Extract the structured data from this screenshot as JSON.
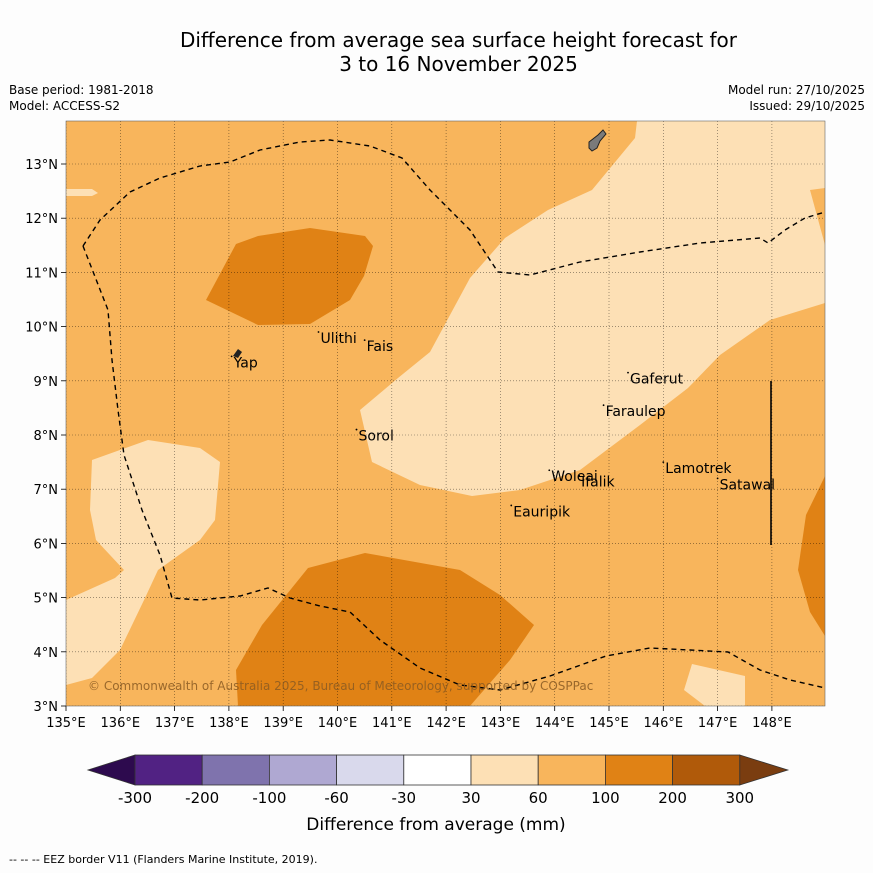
{
  "title": {
    "line1": "Difference from average sea surface height forecast for",
    "line2": "3 to 16 November 2025"
  },
  "meta": {
    "base_period": "Base period: 1981-2018",
    "model": "Model: ACCESS-S2",
    "model_run": "Model run: 27/10/2025",
    "issued": "Issued: 29/10/2025"
  },
  "map": {
    "lon_range": [
      135,
      149
    ],
    "lat_range": [
      3,
      13.8
    ],
    "lon_ticks": [
      "135°E",
      "136°E",
      "137°E",
      "138°E",
      "139°E",
      "140°E",
      "141°E",
      "142°E",
      "143°E",
      "144°E",
      "145°E",
      "146°E",
      "147°E",
      "148°E"
    ],
    "lat_ticks": [
      "3°N",
      "4°N",
      "5°N",
      "6°N",
      "7°N",
      "8°N",
      "9°N",
      "10°N",
      "11°N",
      "12°N",
      "13°N"
    ],
    "places": [
      {
        "name": "Yap",
        "lon": 138.05,
        "lat": 9.45
      },
      {
        "name": "Ulithi",
        "lon": 139.65,
        "lat": 9.9
      },
      {
        "name": "Fais",
        "lon": 140.5,
        "lat": 9.75
      },
      {
        "name": "Sorol",
        "lon": 140.35,
        "lat": 8.1
      },
      {
        "name": "Gaferut",
        "lon": 145.35,
        "lat": 9.15
      },
      {
        "name": "Faraulep",
        "lon": 144.9,
        "lat": 8.55
      },
      {
        "name": "Woleai",
        "lon": 143.9,
        "lat": 7.35
      },
      {
        "name": "Ifalik",
        "lon": 144.45,
        "lat": 7.25
      },
      {
        "name": "Eauripik",
        "lon": 143.2,
        "lat": 6.7
      },
      {
        "name": "Lamotrek",
        "lon": 146.0,
        "lat": 7.5
      },
      {
        "name": "Satawal",
        "lon": 147.0,
        "lat": 7.2
      }
    ],
    "copyright": "© Commonwealth of Australia 2025, Bureau of Meteorology, supported by COSPPac"
  },
  "legend": {
    "title": "Difference from average (mm)",
    "ticks": [
      "-300",
      "-200",
      "-100",
      "-60",
      "-30",
      "30",
      "60",
      "100",
      "200",
      "300"
    ],
    "colors": [
      "#2d0a4e",
      "#512283",
      "#7f73ad",
      "#afa8d2",
      "#d9d9ec",
      "#ffffff",
      "#fde0b5",
      "#f8b55c",
      "#e08215",
      "#b05a0a",
      "#7a3d10"
    ]
  },
  "footer": "--  --  -- EEZ border V11 (Flanders Marine Institute, 2019)."
}
